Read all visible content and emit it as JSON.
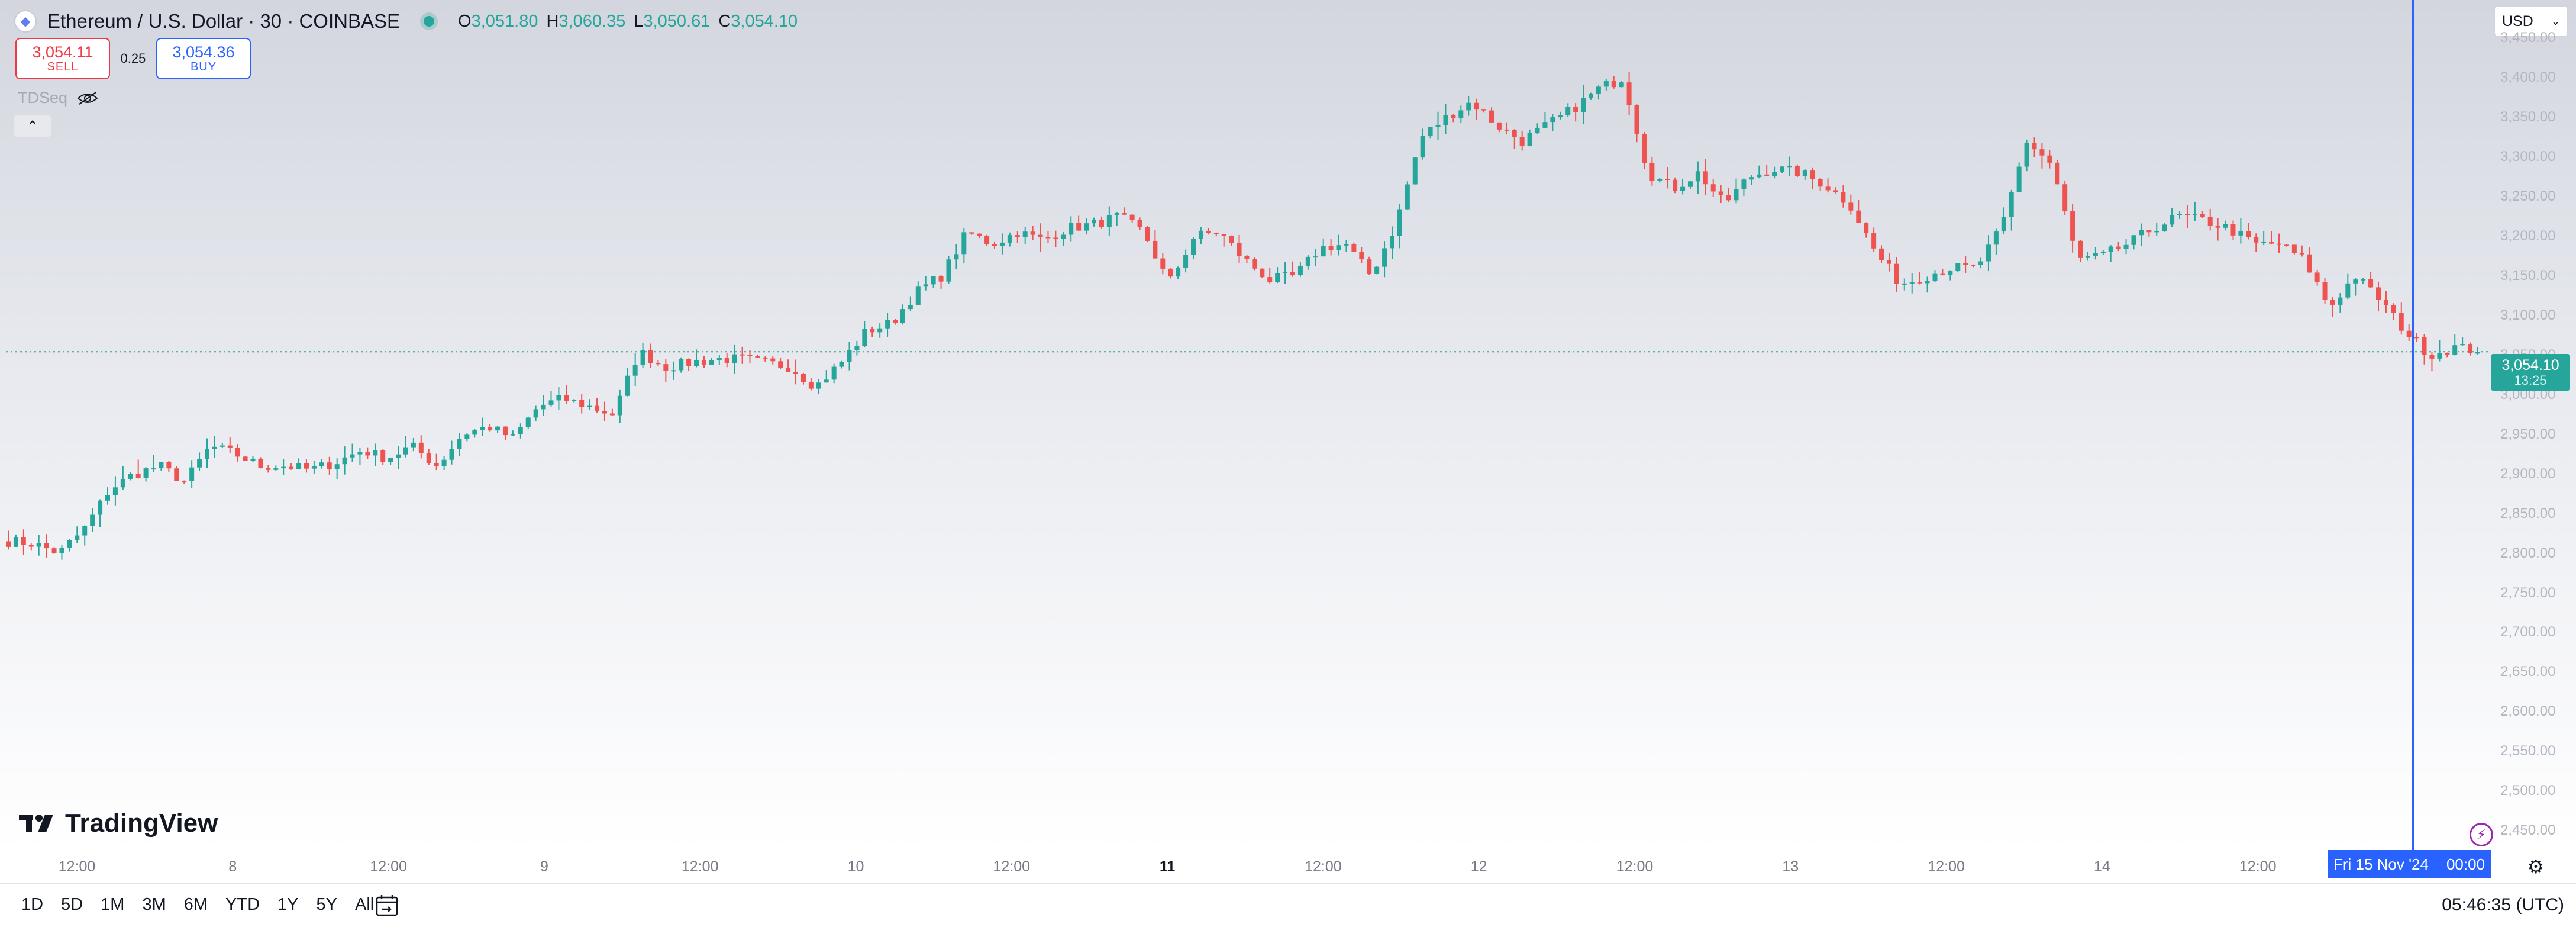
{
  "header": {
    "symbol_title": "Ethereum / U.S. Dollar · 30 · COINBASE",
    "ohlc": [
      {
        "key": "O",
        "value": "3,051.80"
      },
      {
        "key": "H",
        "value": "3,060.35"
      },
      {
        "key": "L",
        "value": "3,050.61"
      },
      {
        "key": "C",
        "value": "3,054.10"
      }
    ]
  },
  "trade": {
    "sell_price": "3,054.11",
    "sell_label": "SELL",
    "spread": "0.25",
    "buy_price": "3,054.36",
    "buy_label": "BUY"
  },
  "indicator": {
    "name": "TDSeq"
  },
  "currency": {
    "selected": "USD"
  },
  "last_price": {
    "price": "3,054.10",
    "countdown": "13:25"
  },
  "crosshair": {
    "date": "Fri 15 Nov '24",
    "time": "00:00"
  },
  "brand": {
    "logo_text": "TradingView"
  },
  "bottom_toolbar": {
    "ranges": [
      "1D",
      "5D",
      "1M",
      "3M",
      "6M",
      "YTD",
      "1Y",
      "5Y",
      "All"
    ],
    "clock": "05:46:35 (UTC)"
  },
  "colors": {
    "up": "#26a69a",
    "down": "#ef5350",
    "accent": "#2962ff"
  },
  "icons": [
    "ethereum-logo-icon",
    "visibility-eye-icon",
    "chevron-up-icon",
    "chevron-down-icon",
    "tradingview-logo-icon",
    "lightning-icon",
    "settings-gear-icon",
    "date-range-icon"
  ],
  "chart_data": {
    "type": "candlestick",
    "title": "Ethereum / U.S. Dollar · 30 · COINBASE",
    "ylim": [
      2430,
      3480
    ],
    "y_ticks": [
      "3,450.00",
      "3,400.00",
      "3,350.00",
      "3,300.00",
      "3,250.00",
      "3,200.00",
      "3,150.00",
      "3,100.00",
      "3,050.00",
      "3,000.00",
      "2,950.00",
      "2,900.00",
      "2,850.00",
      "2,800.00",
      "2,750.00",
      "2,700.00",
      "2,650.00",
      "2,600.00",
      "2,550.00",
      "2,500.00",
      "2,450.00"
    ],
    "x_ticks": [
      {
        "label": "12:00",
        "bold": false
      },
      {
        "label": "8",
        "bold": false
      },
      {
        "label": "12:00",
        "bold": false
      },
      {
        "label": "9",
        "bold": false
      },
      {
        "label": "12:00",
        "bold": false
      },
      {
        "label": "10",
        "bold": false
      },
      {
        "label": "12:00",
        "bold": false
      },
      {
        "label": "11",
        "bold": true
      },
      {
        "label": "12:00",
        "bold": false
      },
      {
        "label": "12",
        "bold": false
      },
      {
        "label": "12:00",
        "bold": false
      },
      {
        "label": "13",
        "bold": false
      },
      {
        "label": "12:00",
        "bold": false
      },
      {
        "label": "14",
        "bold": false
      },
      {
        "label": "12:00",
        "bold": false
      }
    ],
    "close_anchors": [
      2815,
      2812,
      2800,
      2830,
      2880,
      2900,
      2910,
      2890,
      2935,
      2925,
      2910,
      2910,
      2905,
      2915,
      2930,
      2920,
      2935,
      2910,
      2950,
      2960,
      2945,
      2985,
      2995,
      2985,
      2975,
      3055,
      3035,
      3040,
      3045,
      3045,
      3040,
      3035,
      3010,
      3040,
      3080,
      3090,
      3130,
      3150,
      3205,
      3190,
      3205,
      3195,
      3210,
      3215,
      3225,
      3205,
      3140,
      3200,
      3205,
      3170,
      3145,
      3150,
      3185,
      3190,
      3150,
      3215,
      3325,
      3350,
      3370,
      3340,
      3320,
      3340,
      3360,
      3385,
      3400,
      3280,
      3260,
      3280,
      3240,
      3275,
      3285,
      3280,
      3265,
      3240,
      3180,
      3140,
      3150,
      3160,
      3160,
      3210,
      3320,
      3290,
      3170,
      3175,
      3190,
      3210,
      3225,
      3220,
      3210,
      3190,
      3190,
      3170,
      3110,
      3150,
      3120,
      3080,
      3050,
      3060,
      3054.1
    ],
    "last": {
      "close": 3054.1,
      "open": 3051.8,
      "high": 3060.35,
      "low": 3050.61
    }
  }
}
